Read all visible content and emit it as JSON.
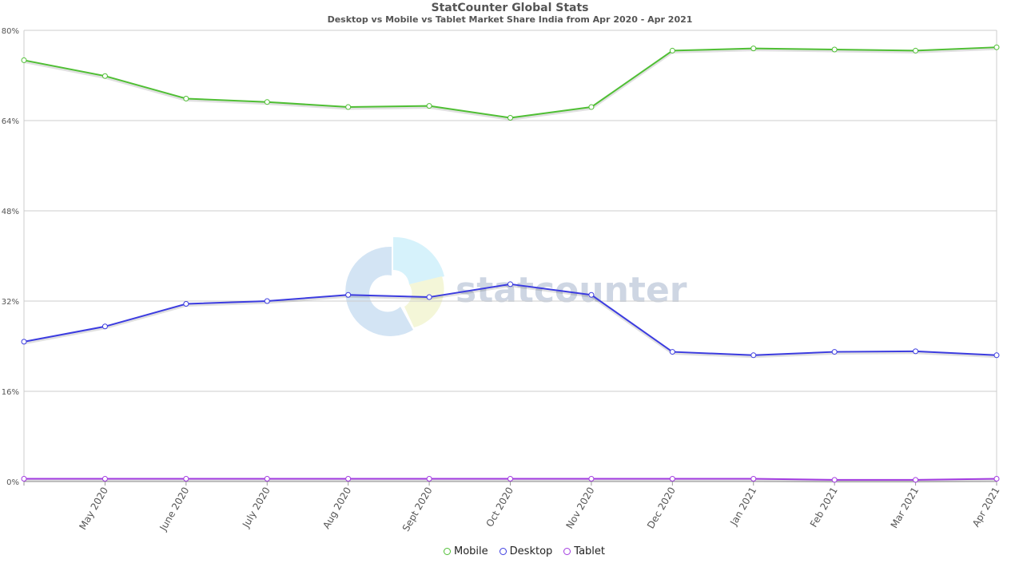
{
  "chart_data": {
    "type": "line",
    "title": "StatCounter Global Stats",
    "subtitle": "Desktop vs Mobile vs Tablet Market Share India from Apr 2020 - Apr 2021",
    "watermark": "statcounter",
    "xlabel": "",
    "ylabel": "",
    "ylim": [
      0,
      80
    ],
    "yticks": [
      0,
      16,
      32,
      48,
      64,
      80
    ],
    "ytick_labels": [
      "0%",
      "16%",
      "32%",
      "48%",
      "64%",
      "80%"
    ],
    "x": [
      "Apr 2020",
      "May 2020",
      "June 2020",
      "July 2020",
      "Aug 2020",
      "Sept 2020",
      "Oct 2020",
      "Nov 2020",
      "Dec 2020",
      "Jan 2021",
      "Feb 2021",
      "Mar 2021",
      "Apr 2021"
    ],
    "xtick_labels": [
      "",
      "May 2020",
      "June 2020",
      "July 2020",
      "Aug 2020",
      "Sept 2020",
      "Oct 2020",
      "Nov 2020",
      "Dec 2020",
      "Jan 2021",
      "Feb 2021",
      "Mar 2021",
      "Apr 2021"
    ],
    "grid": true,
    "legend_position": "bottom-center",
    "series": [
      {
        "name": "Mobile",
        "color": "#4fbf34",
        "values": [
          74.7,
          71.9,
          67.9,
          67.3,
          66.4,
          66.6,
          64.5,
          66.4,
          76.4,
          76.8,
          76.6,
          76.4,
          77.0
        ]
      },
      {
        "name": "Desktop",
        "color": "#3c3ce0",
        "values": [
          24.8,
          27.5,
          31.5,
          32.0,
          33.1,
          32.7,
          35.0,
          33.1,
          23.0,
          22.4,
          23.0,
          23.1,
          22.4
        ]
      },
      {
        "name": "Tablet",
        "color": "#a23be0",
        "values": [
          0.5,
          0.5,
          0.5,
          0.5,
          0.5,
          0.5,
          0.5,
          0.5,
          0.5,
          0.5,
          0.3,
          0.3,
          0.5
        ]
      }
    ]
  }
}
